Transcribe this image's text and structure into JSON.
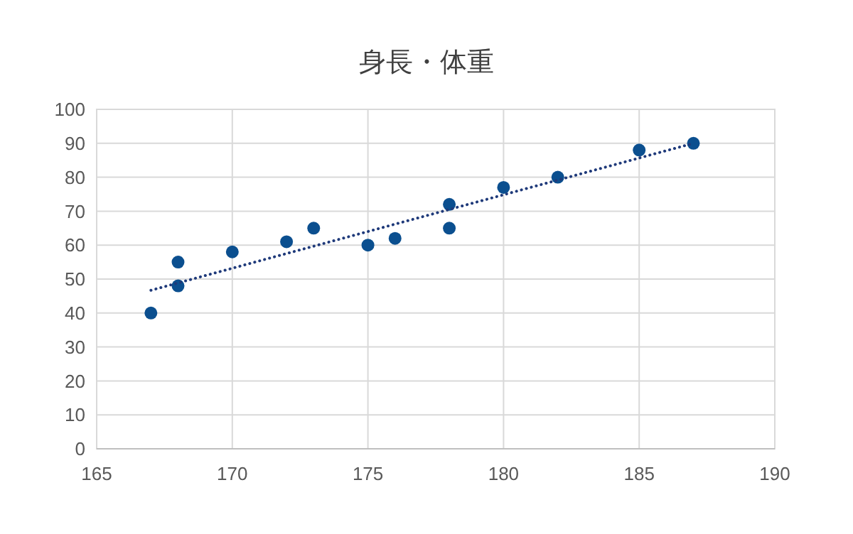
{
  "chart_data": {
    "type": "scatter",
    "title": "身長・体重",
    "xlim": [
      165,
      190
    ],
    "ylim": [
      0,
      100
    ],
    "xticks": [
      165,
      170,
      175,
      180,
      185,
      190
    ],
    "yticks": [
      0,
      10,
      20,
      30,
      40,
      50,
      60,
      70,
      80,
      90,
      100
    ],
    "grid": true,
    "series": [
      {
        "color": "#0b4f8f",
        "marker": "circle",
        "x": [
          167,
          168,
          168,
          170,
          172,
          173,
          175,
          176,
          178,
          178,
          180,
          182,
          185,
          187
        ],
        "values": [
          40,
          55,
          48,
          58,
          61,
          65,
          60,
          62,
          72,
          65,
          77,
          80,
          88,
          90
        ]
      },
      {
        "type": "line",
        "color": "#1f3a7a",
        "line_style": "dotted",
        "marker": "none",
        "x": [
          167,
          187
        ],
        "values": [
          46.7,
          90
        ]
      }
    ]
  }
}
